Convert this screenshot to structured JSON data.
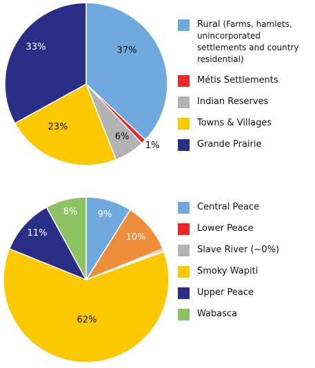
{
  "chart_data": [
    {
      "type": "pie",
      "slices": [
        {
          "name": "Rural",
          "note": "(Farms, hamlets, unincorporated settlements and country residential)",
          "value": 37,
          "label": "37%",
          "color": "#6fa9dd",
          "label_color": "#111111"
        },
        {
          "name": "Métis Settlements",
          "note": "",
          "value": 1,
          "label": "1%",
          "color": "#e8282b",
          "label_color": "#111111"
        },
        {
          "name": "Indian Reserves",
          "note": "",
          "value": 6,
          "label": "6%",
          "color": "#b3b3b3",
          "label_color": "#111111"
        },
        {
          "name": "Towns & Villages",
          "note": "",
          "value": 23,
          "label": "23%",
          "color": "#fcc800",
          "label_color": "#111111"
        },
        {
          "name": "Grande Prairie",
          "note": "",
          "value": 33,
          "label": "33%",
          "color": "#2a2e86",
          "label_color": "#ffffff"
        }
      ]
    },
    {
      "type": "pie",
      "slices": [
        {
          "name": "Central Peace",
          "value": 9,
          "label": "9%",
          "color": "#6fa9dd",
          "label_color": "#ffffff"
        },
        {
          "name": "Lower Peace",
          "value": 0.3,
          "label": "",
          "color": "#e8282b",
          "label_color": "#ffffff"
        },
        {
          "name": "Slave River (~0%)",
          "value": 0.3,
          "label": "",
          "color": "#b3b3b3",
          "label_color": "#ffffff"
        },
        {
          "name": "Smoky Wapiti",
          "value": 62,
          "label": "62%",
          "color": "#fcc800",
          "label_color": "#111111"
        },
        {
          "name": "Upper Peace",
          "value": 11,
          "label": "11%",
          "color": "#2a2e86",
          "label_color": "#ffffff"
        },
        {
          "name": "Wabasca",
          "value": 8,
          "label": "8%",
          "color": "#8dc263",
          "label_color": "#ffffff"
        },
        {
          "name": "",
          "value": 10,
          "label": "10%",
          "color": "#ef8e3a",
          "label_color": "#ffffff"
        }
      ],
      "legend_order": [
        0,
        1,
        2,
        3,
        4,
        5
      ]
    }
  ]
}
